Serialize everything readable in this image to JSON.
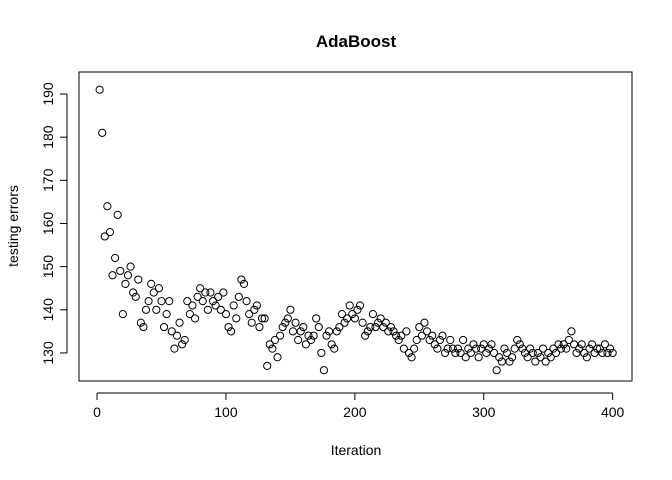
{
  "chart_data": {
    "type": "scatter",
    "title": "AdaBoost",
    "x_label": "Iteration",
    "y_label": "testing errors",
    "x": [
      2,
      4,
      6,
      8,
      10,
      12,
      14,
      16,
      18,
      20,
      22,
      24,
      26,
      28,
      30,
      32,
      34,
      36,
      38,
      40,
      42,
      44,
      46,
      48,
      50,
      52,
      54,
      56,
      58,
      60,
      62,
      64,
      66,
      68,
      70,
      72,
      74,
      76,
      78,
      80,
      82,
      84,
      86,
      88,
      90,
      92,
      94,
      96,
      98,
      100,
      102,
      104,
      106,
      108,
      110,
      112,
      114,
      116,
      118,
      120,
      122,
      124,
      126,
      128,
      130,
      132,
      134,
      136,
      138,
      140,
      142,
      144,
      146,
      148,
      150,
      152,
      154,
      156,
      158,
      160,
      162,
      164,
      166,
      168,
      170,
      172,
      174,
      176,
      178,
      180,
      182,
      184,
      186,
      188,
      190,
      192,
      194,
      196,
      198,
      200,
      202,
      204,
      206,
      208,
      210,
      212,
      214,
      216,
      218,
      220,
      222,
      224,
      226,
      228,
      230,
      232,
      234,
      236,
      238,
      240,
      242,
      244,
      246,
      248,
      250,
      252,
      254,
      256,
      258,
      260,
      262,
      264,
      266,
      268,
      270,
      272,
      274,
      276,
      278,
      280,
      282,
      284,
      286,
      288,
      290,
      292,
      294,
      296,
      298,
      300,
      302,
      304,
      306,
      308,
      310,
      312,
      314,
      316,
      318,
      320,
      322,
      324,
      326,
      328,
      330,
      332,
      334,
      336,
      338,
      340,
      342,
      344,
      346,
      348,
      350,
      352,
      354,
      356,
      358,
      360,
      362,
      364,
      366,
      368,
      370,
      372,
      374,
      376,
      378,
      380,
      382,
      384,
      386,
      388,
      390,
      392,
      394,
      396,
      398,
      400
    ],
    "values": [
      191,
      181,
      157,
      164,
      158,
      148,
      152,
      162,
      149,
      139,
      146,
      148,
      150,
      144,
      143,
      147,
      137,
      136,
      140,
      142,
      146,
      144,
      140,
      145,
      142,
      136,
      139,
      142,
      135,
      131,
      134,
      137,
      132,
      133,
      142,
      139,
      141,
      138,
      143,
      145,
      142,
      144,
      140,
      144,
      142,
      141,
      143,
      140,
      144,
      139,
      136,
      135,
      141,
      138,
      143,
      147,
      146,
      142,
      139,
      137,
      140,
      141,
      136,
      138,
      138,
      127,
      132,
      131,
      133,
      129,
      134,
      136,
      137,
      138,
      140,
      135,
      137,
      133,
      135,
      136,
      132,
      134,
      133,
      134,
      138,
      136,
      130,
      126,
      134,
      135,
      132,
      131,
      135,
      136,
      139,
      137,
      138,
      141,
      139,
      138,
      140,
      141,
      137,
      134,
      135,
      136,
      139,
      136,
      137,
      138,
      136,
      137,
      135,
      136,
      135,
      134,
      133,
      134,
      131,
      135,
      130,
      129,
      131,
      133,
      136,
      134,
      137,
      135,
      133,
      134,
      132,
      131,
      133,
      134,
      130,
      131,
      133,
      131,
      130,
      131,
      130,
      133,
      129,
      131,
      130,
      132,
      131,
      129,
      131,
      132,
      130,
      131,
      132,
      130,
      126,
      129,
      128,
      131,
      130,
      128,
      129,
      131,
      133,
      132,
      131,
      130,
      129,
      131,
      130,
      128,
      130,
      129,
      131,
      128,
      130,
      129,
      131,
      130,
      132,
      131,
      132,
      131,
      133,
      135,
      132,
      130,
      131,
      132,
      130,
      129,
      131,
      132,
      130,
      131,
      131,
      130,
      132,
      130,
      131,
      130
    ],
    "color": "#000000",
    "xlim": [
      -14,
      415
    ],
    "ylim": [
      123.5,
      195.1
    ],
    "xticks": [
      0,
      100,
      200,
      300,
      400
    ],
    "yticks": [
      130,
      140,
      150,
      160,
      170,
      180,
      190
    ]
  }
}
